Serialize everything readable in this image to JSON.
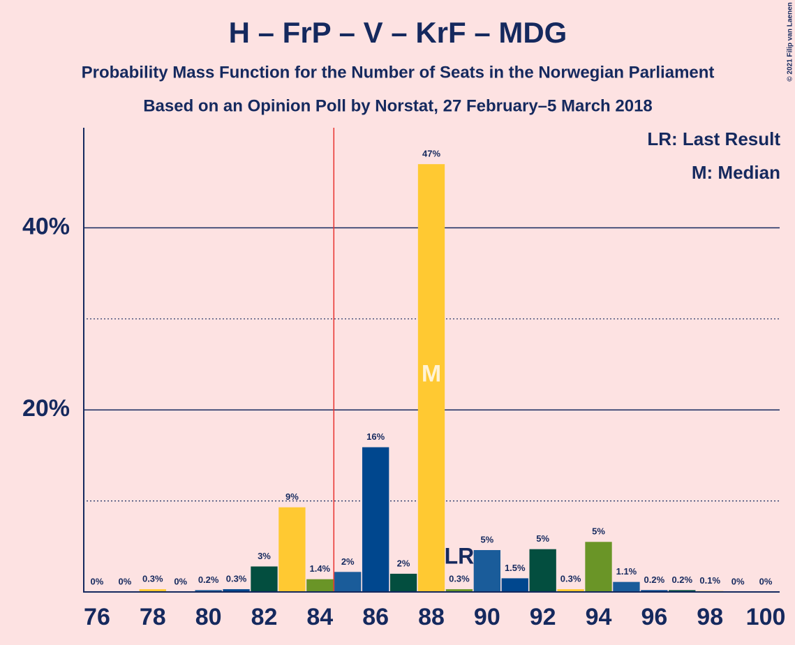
{
  "chart_data": {
    "type": "bar",
    "title": "H – FrP – V – KrF – MDG",
    "subtitle": "Probability Mass Function for the Number of Seats in the Norwegian Parliament",
    "subtitle2": "Based on an Opinion Poll by Norstat, 27 February–5 March 2018",
    "copyright": "© 2021 Filip van Laenen",
    "x": [
      76,
      77,
      78,
      79,
      80,
      81,
      82,
      83,
      84,
      85,
      86,
      87,
      88,
      89,
      90,
      91,
      92,
      93,
      94,
      95,
      96,
      97,
      98,
      99,
      100
    ],
    "values": [
      0,
      0,
      0.3,
      0,
      0.2,
      0.3,
      2.8,
      9.3,
      1.4,
      2.2,
      15.9,
      2.0,
      47.0,
      0.3,
      4.6,
      1.5,
      4.7,
      0.3,
      5.5,
      1.1,
      0.2,
      0.2,
      0.1,
      0,
      0
    ],
    "value_labels": [
      "0%",
      "0%",
      "0.3%",
      "0%",
      "0.2%",
      "0.3%",
      "3%",
      "9%",
      "1.4%",
      "2%",
      "16%",
      "2%",
      "47%",
      "0.3%",
      "5%",
      "1.5%",
      "5%",
      "0.3%",
      "5%",
      "1.1%",
      "0.2%",
      "0.2%",
      "0.1%",
      "0%",
      "0%"
    ],
    "colors": [
      "#00478e",
      "#034e3f",
      "#ffc932",
      "#6a9527",
      "#1a5c9a",
      "#00478e",
      "#034e3f",
      "#ffc932",
      "#6a9527",
      "#1a5c9a",
      "#00478e",
      "#034e3f",
      "#ffc932",
      "#6a9527",
      "#1a5c9a",
      "#00478e",
      "#034e3f",
      "#ffc932",
      "#6a9527",
      "#1a5c9a",
      "#00478e",
      "#034e3f",
      "#ffc932",
      "#6a9527",
      "#1a5c9a"
    ],
    "xlim": [
      75.5,
      100.5
    ],
    "xticks": [
      76,
      78,
      80,
      82,
      84,
      86,
      88,
      90,
      92,
      94,
      96,
      98,
      100
    ],
    "ylim": [
      0,
      51
    ],
    "yticks": [
      {
        "value": 20,
        "label": "20%"
      },
      {
        "value": 40,
        "label": "40%"
      }
    ],
    "minor_yticks": [
      10,
      30
    ],
    "majority_line": 84.5,
    "annotations": [
      {
        "x": 89,
        "label": "LR"
      },
      {
        "x": 88,
        "label": "M"
      }
    ],
    "legend": [
      "LR: Last Result",
      "M: Median"
    ]
  }
}
